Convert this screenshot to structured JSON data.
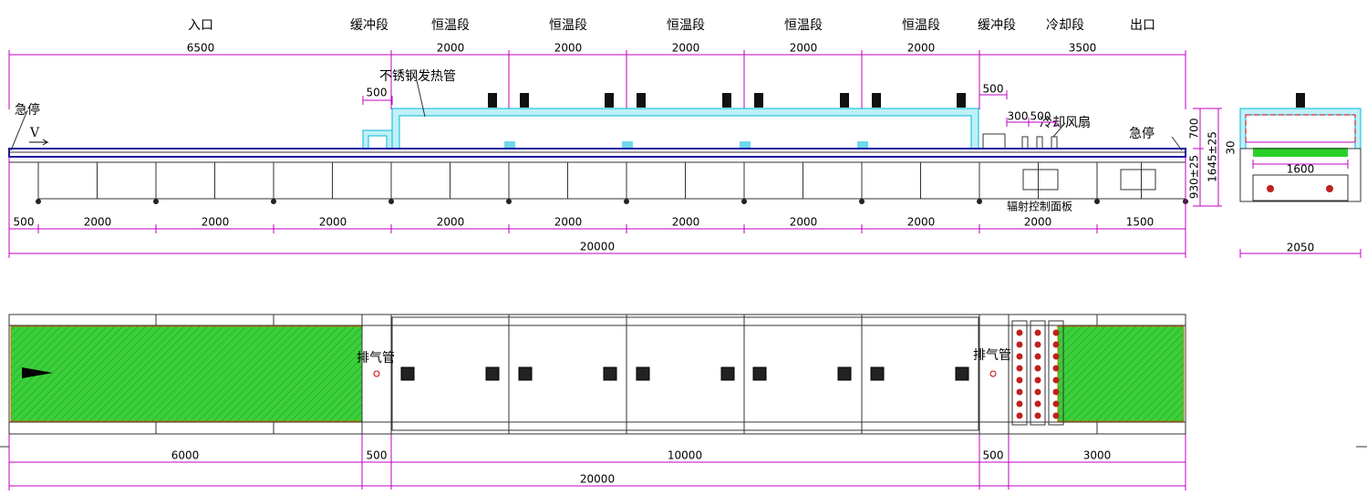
{
  "side_view": {
    "zone_labels": [
      "入口",
      "缓冲段",
      "恒温段",
      "恒温段",
      "恒温段",
      "恒温段",
      "恒温段",
      "缓冲段",
      "冷却段",
      "出口"
    ],
    "top_dims": [
      6500,
      2000,
      2000,
      2000,
      2000,
      2000,
      3500
    ],
    "bottom_dims": [
      500,
      2000,
      2000,
      2000,
      2000,
      2000,
      2000,
      2000,
      2000,
      2000,
      1500
    ],
    "total": 20000,
    "annotations": {
      "heater": "不锈钢发热管",
      "estop_left": "急停",
      "estop_right": "急停",
      "fan": "冷却风扇",
      "panel": "辐射控制面板",
      "direction": "V",
      "buffer_left": 500,
      "buffer_right": 500,
      "fan_gap_a": 300,
      "fan_gap_b": 500,
      "height_hood": 700,
      "height_total": "1645±25",
      "height_belt": "930±25"
    }
  },
  "end_view": {
    "offset": 30,
    "inner_width": 1600,
    "width": 2050
  },
  "plan_view": {
    "exhaust": [
      "排气管",
      "排气管"
    ],
    "dims": [
      6000,
      500,
      10000,
      500,
      3000
    ],
    "total": 20000
  }
}
